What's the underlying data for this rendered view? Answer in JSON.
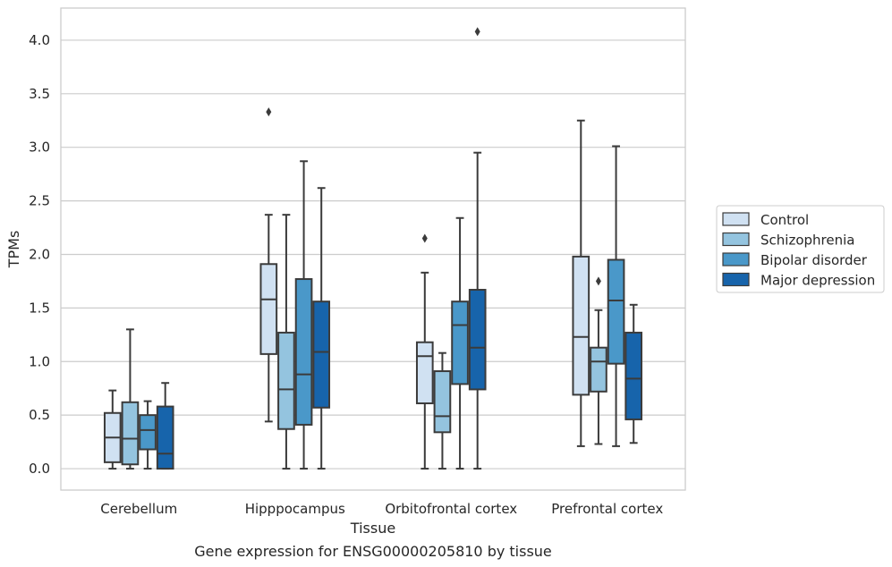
{
  "chart_data": {
    "type": "boxplot",
    "title": "Gene expression for ENSG00000205810 by tissue",
    "xlabel": "Tissue",
    "ylabel": "TPMs",
    "ylim": [
      -0.2,
      4.3
    ],
    "yticks": [
      0.0,
      0.5,
      1.0,
      1.5,
      2.0,
      2.5,
      3.0,
      3.5,
      4.0
    ],
    "ytick_labels": [
      "0.0",
      "0.5",
      "1.0",
      "1.5",
      "2.0",
      "2.5",
      "3.0",
      "3.5",
      "4.0"
    ],
    "categories": [
      "Cerebellum",
      "Hipppocampus",
      "Orbitofrontal cortex",
      "Prefrontal cortex"
    ],
    "grid": "horizontal",
    "legend_position": "right",
    "series": [
      {
        "name": "Control",
        "color": "#d0e1f2",
        "boxes": [
          {
            "whislo": 0.0,
            "q1": 0.06,
            "med": 0.29,
            "q3": 0.52,
            "whishi": 0.73,
            "fliers": []
          },
          {
            "whislo": 0.44,
            "q1": 1.07,
            "med": 1.58,
            "q3": 1.91,
            "whishi": 2.37,
            "fliers": [
              3.33
            ]
          },
          {
            "whislo": 0.0,
            "q1": 0.61,
            "med": 1.05,
            "q3": 1.18,
            "whishi": 1.83,
            "fliers": [
              2.15
            ]
          },
          {
            "whislo": 0.21,
            "q1": 0.69,
            "med": 1.23,
            "q3": 1.98,
            "whishi": 3.25,
            "fliers": []
          }
        ]
      },
      {
        "name": "Schizophrenia",
        "color": "#94c4df",
        "boxes": [
          {
            "whislo": 0.0,
            "q1": 0.04,
            "med": 0.28,
            "q3": 0.62,
            "whishi": 1.3,
            "fliers": []
          },
          {
            "whislo": 0.0,
            "q1": 0.37,
            "med": 0.74,
            "q3": 1.27,
            "whishi": 2.37,
            "fliers": []
          },
          {
            "whislo": 0.0,
            "q1": 0.34,
            "med": 0.49,
            "q3": 0.91,
            "whishi": 1.08,
            "fliers": []
          },
          {
            "whislo": 0.23,
            "q1": 0.72,
            "med": 1.0,
            "q3": 1.13,
            "whishi": 1.48,
            "fliers": [
              1.75
            ]
          }
        ]
      },
      {
        "name": "Bipolar disorder",
        "color": "#4a98c9",
        "boxes": [
          {
            "whislo": 0.0,
            "q1": 0.18,
            "med": 0.36,
            "q3": 0.5,
            "whishi": 0.63,
            "fliers": []
          },
          {
            "whislo": 0.0,
            "q1": 0.41,
            "med": 0.88,
            "q3": 1.77,
            "whishi": 2.87,
            "fliers": []
          },
          {
            "whislo": 0.0,
            "q1": 0.79,
            "med": 1.34,
            "q3": 1.56,
            "whishi": 2.34,
            "fliers": []
          },
          {
            "whislo": 0.21,
            "q1": 0.98,
            "med": 1.57,
            "q3": 1.95,
            "whishi": 3.01,
            "fliers": []
          }
        ]
      },
      {
        "name": "Major depression",
        "color": "#1764ab",
        "boxes": [
          {
            "whislo": 0.0,
            "q1": 0.0,
            "med": 0.14,
            "q3": 0.58,
            "whishi": 0.8,
            "fliers": []
          },
          {
            "whislo": 0.0,
            "q1": 0.57,
            "med": 1.09,
            "q3": 1.56,
            "whishi": 2.62,
            "fliers": []
          },
          {
            "whislo": 0.0,
            "q1": 0.74,
            "med": 1.13,
            "q3": 1.67,
            "whishi": 2.95,
            "fliers": [
              4.08
            ]
          },
          {
            "whislo": 0.24,
            "q1": 0.46,
            "med": 0.84,
            "q3": 1.27,
            "whishi": 1.53,
            "fliers": []
          }
        ]
      }
    ]
  }
}
